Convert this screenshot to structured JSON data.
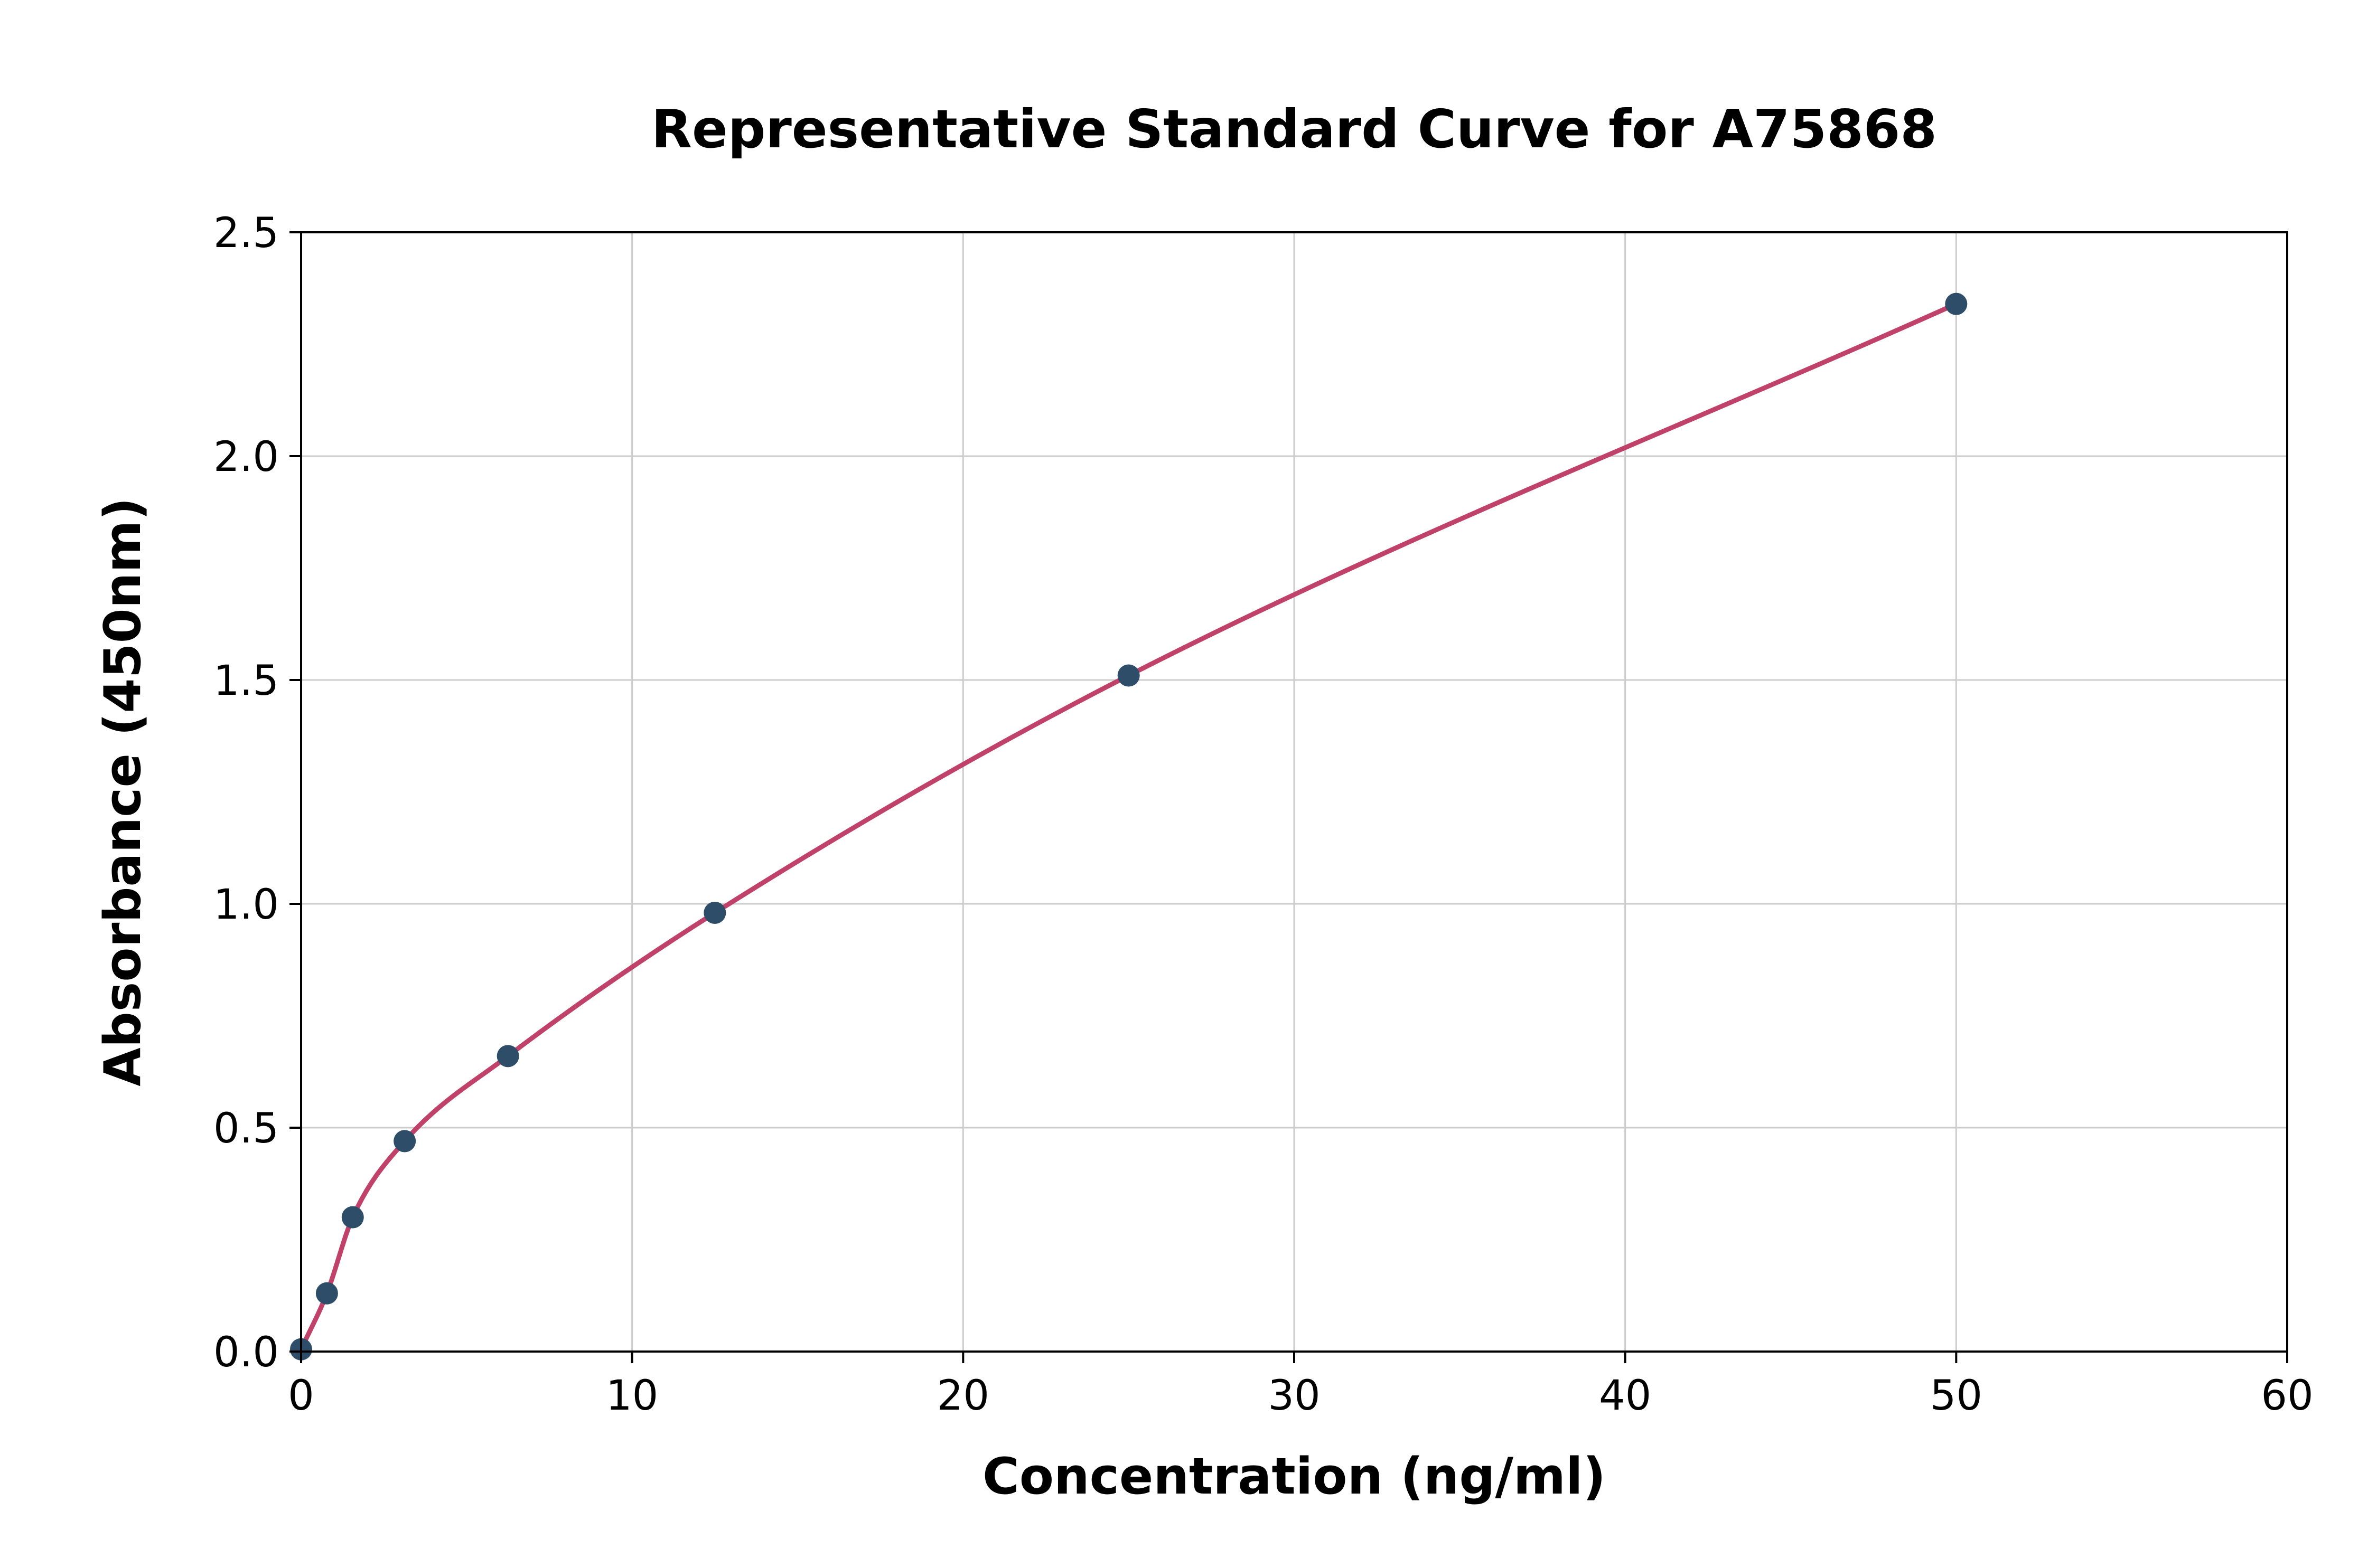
{
  "chart_data": {
    "type": "scatter",
    "title": "Representative Standard Curve for A75868",
    "xlabel": "Concentration (ng/ml)",
    "ylabel": "Absorbance (450nm)",
    "xlim": [
      0,
      60
    ],
    "ylim": [
      0,
      2.5
    ],
    "xticks": [
      0,
      10,
      20,
      30,
      40,
      50,
      60
    ],
    "xtick_labels": [
      "0",
      "10",
      "20",
      "30",
      "40",
      "50",
      "60"
    ],
    "yticks": [
      0,
      0.5,
      1.0,
      1.5,
      2.0,
      2.5
    ],
    "ytick_labels": [
      "0.0",
      "0.5",
      "1.0",
      "1.5",
      "2.0",
      "2.5"
    ],
    "grid": true,
    "legend": "none",
    "points": [
      {
        "x": 0,
        "y": 0.005
      },
      {
        "x": 0.78,
        "y": 0.13
      },
      {
        "x": 1.56,
        "y": 0.3
      },
      {
        "x": 3.13,
        "y": 0.47
      },
      {
        "x": 6.25,
        "y": 0.66
      },
      {
        "x": 12.5,
        "y": 0.98
      },
      {
        "x": 25,
        "y": 1.51
      },
      {
        "x": 50,
        "y": 2.34
      }
    ],
    "series": [
      {
        "name": "fitted standard curve",
        "style": "smooth-line"
      },
      {
        "name": "standard data points",
        "style": "markers"
      }
    ],
    "colors": {
      "curve": "#c0426b",
      "marker": "#2e4d68",
      "grid": "#cccccc",
      "spine": "#000000",
      "background": "#ffffff"
    }
  }
}
